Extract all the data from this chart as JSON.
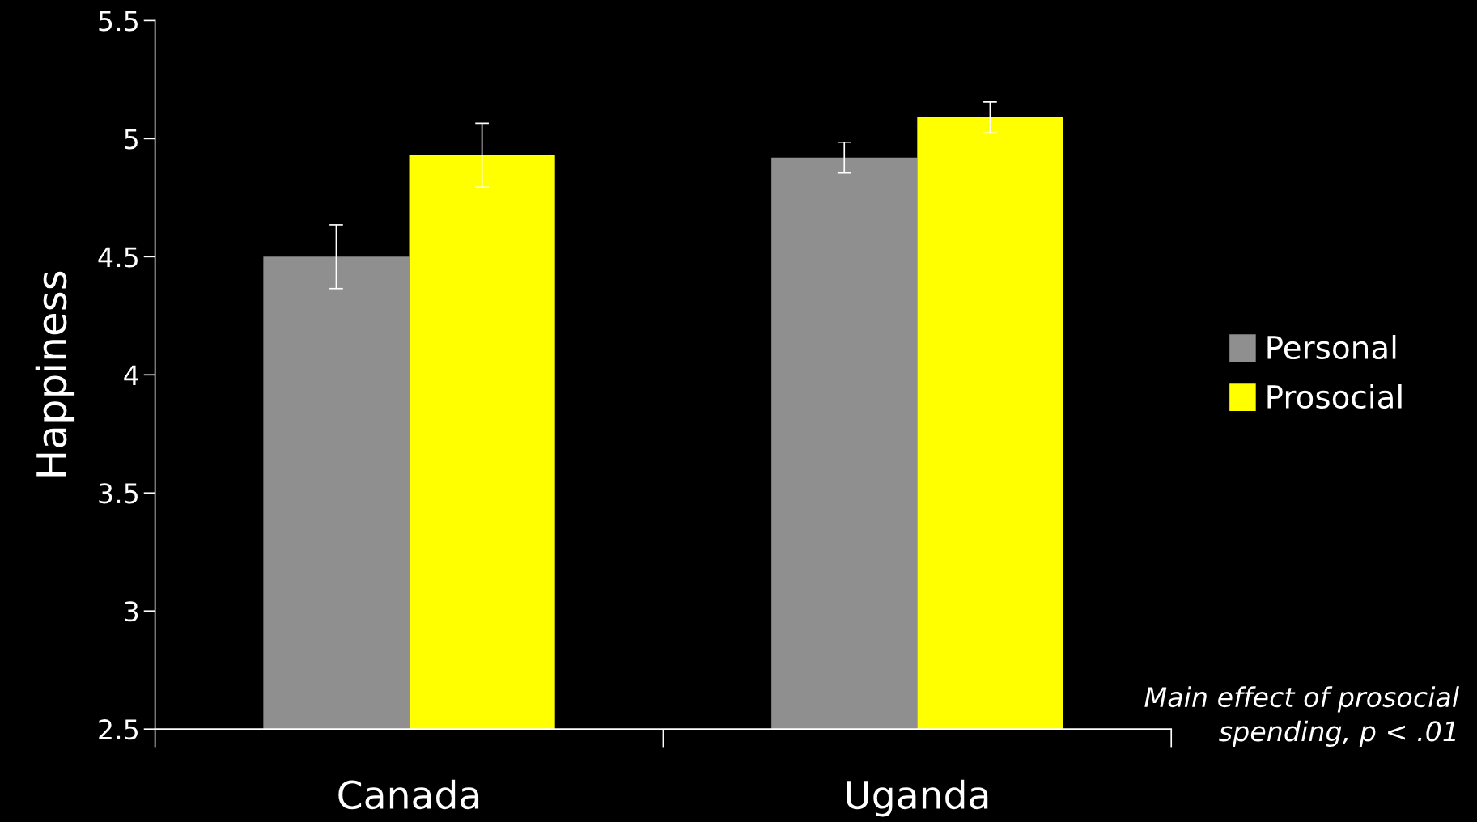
{
  "chart_data": {
    "type": "bar",
    "ylabel": "Happiness",
    "categories": [
      "Canada",
      "Uganda"
    ],
    "series": [
      {
        "name": "Personal",
        "color": "#8f8f8f",
        "values": [
          4.5,
          4.92
        ],
        "errors": [
          0.135,
          0.065
        ]
      },
      {
        "name": "Prosocial",
        "color": "#ffff00",
        "values": [
          4.93,
          5.09
        ],
        "errors": [
          0.135,
          0.066
        ]
      }
    ],
    "ylim": [
      2.5,
      5.5
    ],
    "yticks": [
      2.5,
      3,
      3.5,
      4,
      4.5,
      5,
      5.5
    ],
    "grid": false,
    "legend": "right",
    "annotations": [
      "Main effect of prosocial\nspending, p < .01"
    ]
  }
}
